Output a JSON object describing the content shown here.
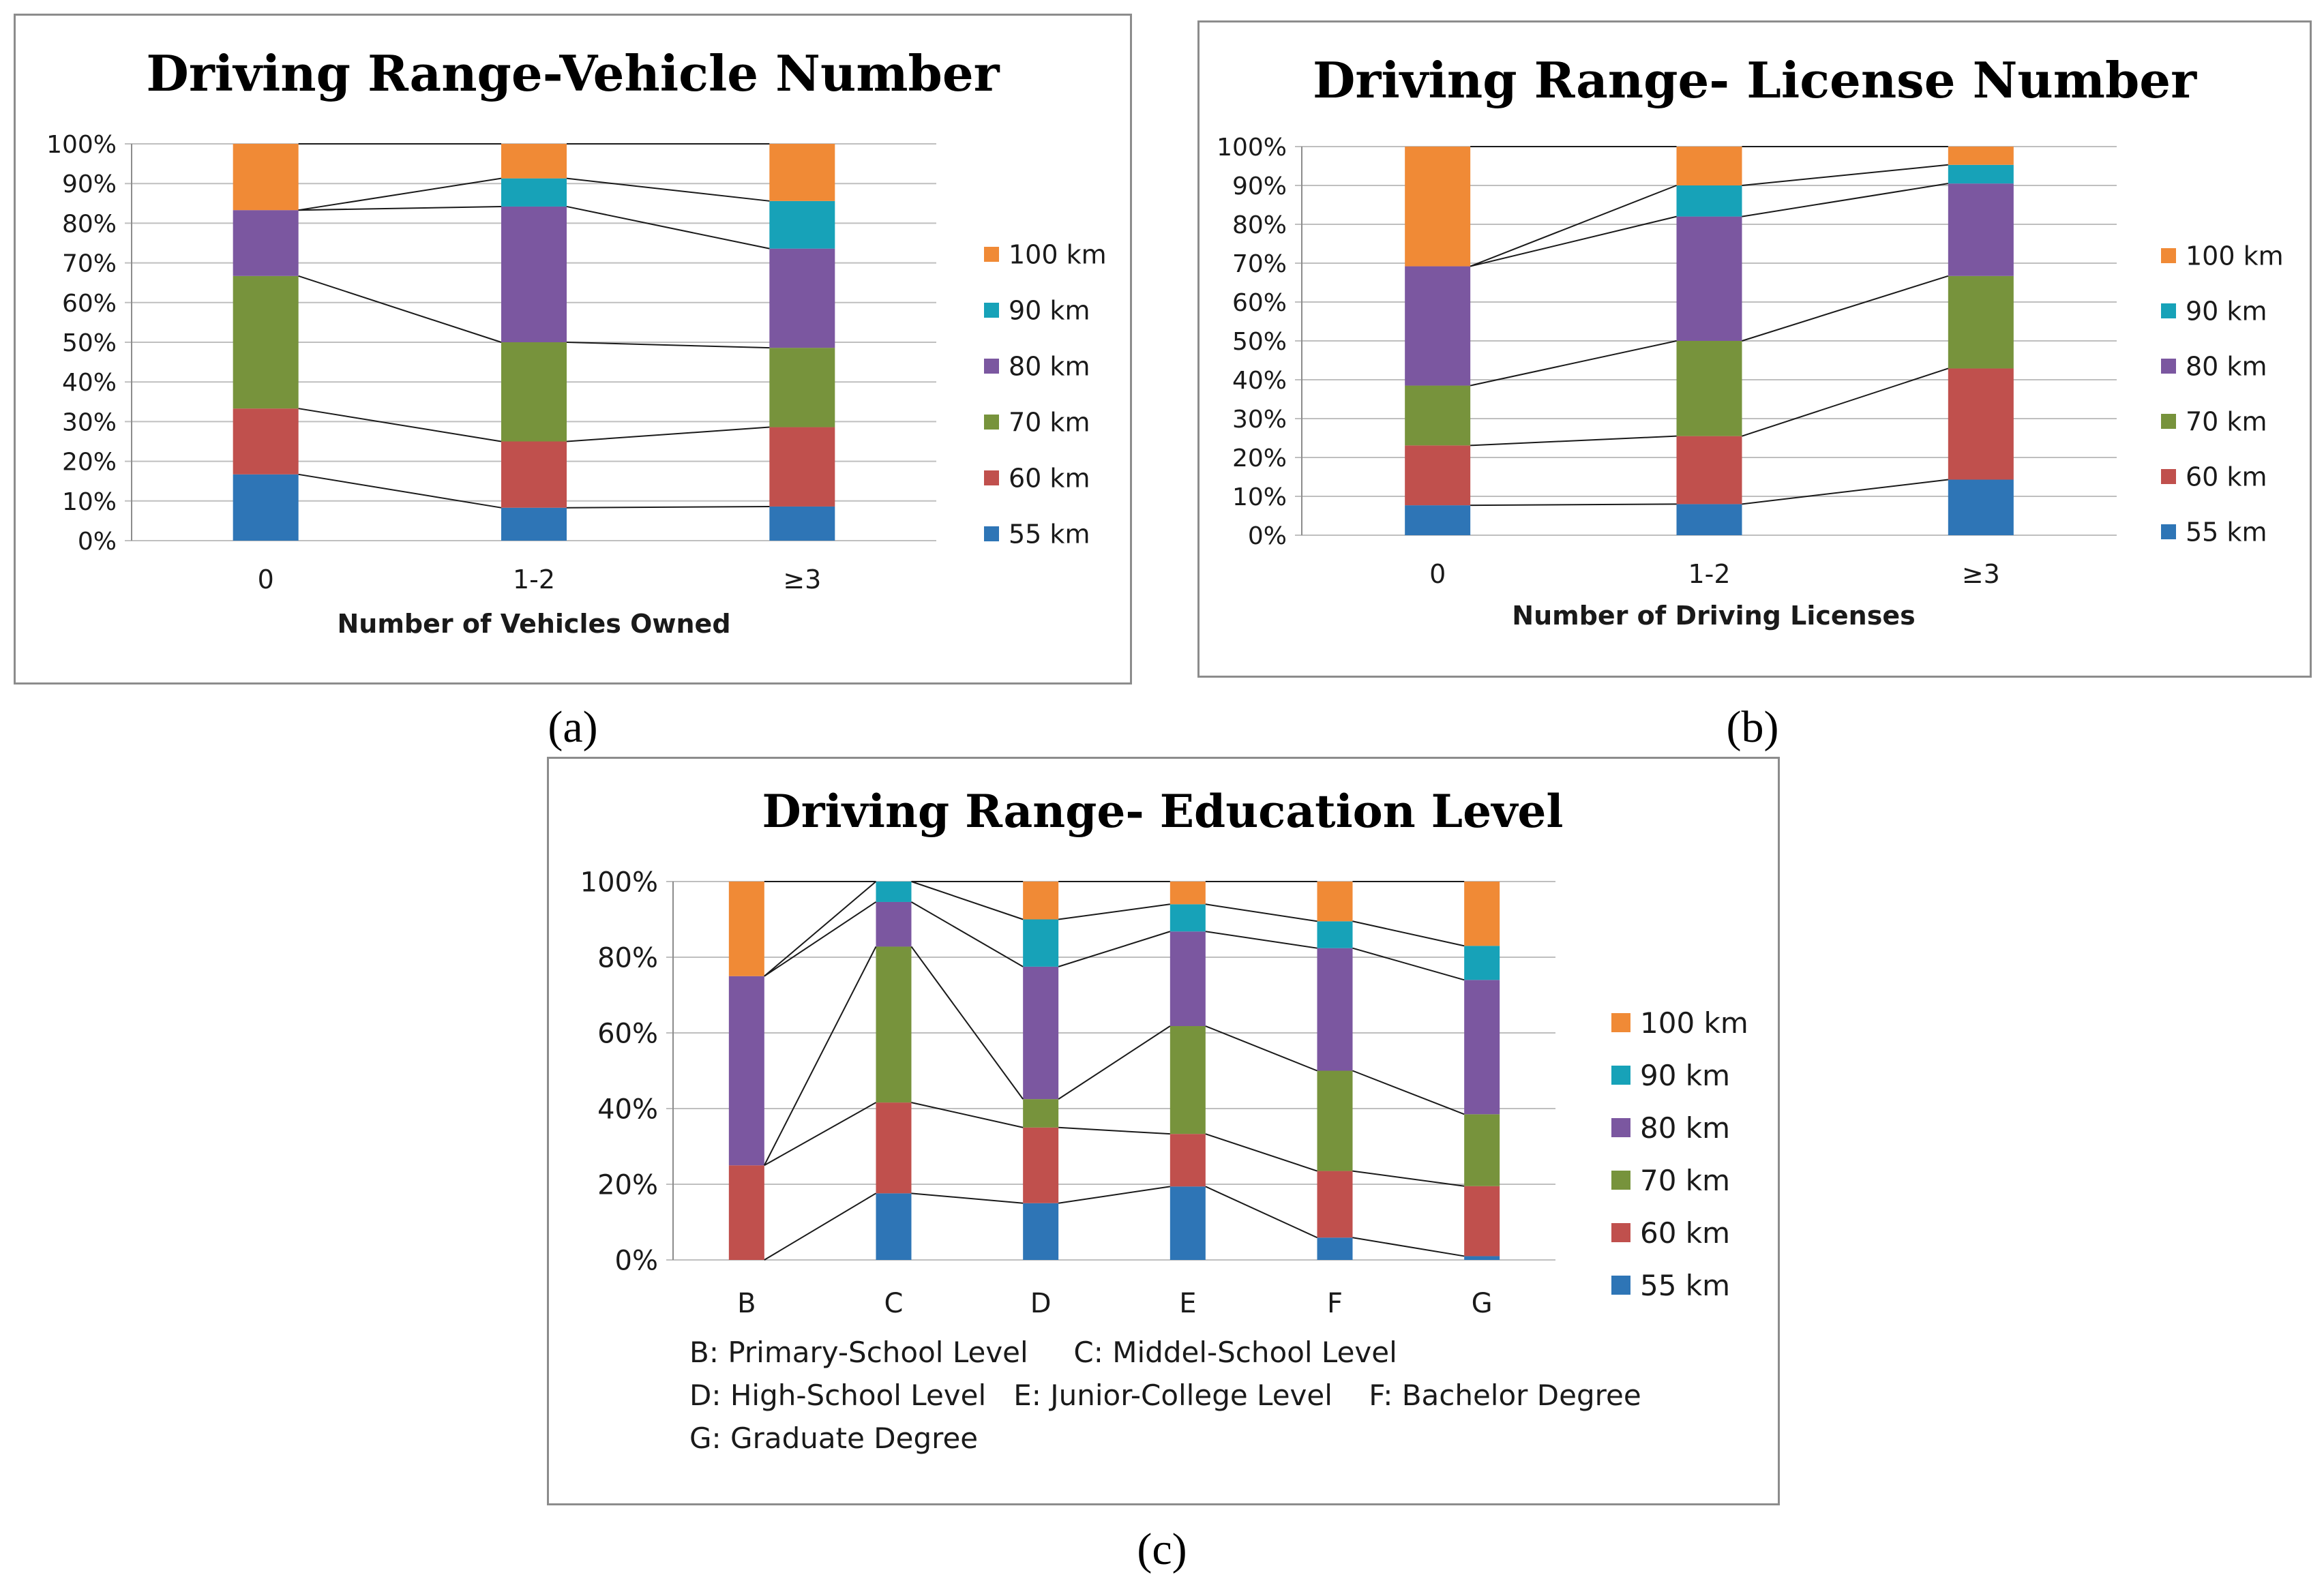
{
  "figure": {
    "captions": [
      "(a)",
      "(b)",
      "(c)"
    ]
  },
  "chart_data": [
    {
      "id": "a",
      "type": "bar",
      "stacked": true,
      "normalized": true,
      "title": "Driving Range-Vehicle Number",
      "xlabel": "Number of Vehicles Owned",
      "ylabel": "",
      "ylim": [
        0,
        100
      ],
      "y_ticks": [
        "0%",
        "10%",
        "20%",
        "30%",
        "40%",
        "50%",
        "60%",
        "70%",
        "80%",
        "90%",
        "100%"
      ],
      "categories": [
        "0",
        "1-2",
        "≥3"
      ],
      "legend_position": "right",
      "series": [
        {
          "name": "55 km",
          "color": "#2e75b6",
          "values": [
            16.7,
            8.3,
            8.6
          ]
        },
        {
          "name": "60 km",
          "color": "#c0504d",
          "values": [
            16.6,
            16.7,
            20.0
          ]
        },
        {
          "name": "70 km",
          "color": "#77933c",
          "values": [
            33.4,
            25.0,
            20.0
          ]
        },
        {
          "name": "80 km",
          "color": "#7b57a0",
          "values": [
            16.6,
            34.2,
            25.0
          ]
        },
        {
          "name": "90 km",
          "color": "#17a2b8",
          "values": [
            0.0,
            7.1,
            12.0
          ]
        },
        {
          "name": "100 km",
          "color": "#f08a36",
          "values": [
            16.7,
            8.7,
            14.4
          ]
        }
      ]
    },
    {
      "id": "b",
      "type": "bar",
      "stacked": true,
      "normalized": true,
      "title": "Driving Range- License Number",
      "xlabel": "Number of Driving Licenses",
      "ylabel": "",
      "ylim": [
        0,
        100
      ],
      "y_ticks": [
        "0%",
        "10%",
        "20%",
        "30%",
        "40%",
        "50%",
        "60%",
        "70%",
        "80%",
        "90%",
        "100%"
      ],
      "categories": [
        "0",
        "1-2",
        "≥3"
      ],
      "legend_position": "right",
      "series": [
        {
          "name": "55 km",
          "color": "#2e75b6",
          "values": [
            7.7,
            8.0,
            14.3
          ]
        },
        {
          "name": "60 km",
          "color": "#c0504d",
          "values": [
            15.4,
            17.5,
            28.6
          ]
        },
        {
          "name": "70 km",
          "color": "#77933c",
          "values": [
            15.4,
            24.5,
            23.8
          ]
        },
        {
          "name": "80 km",
          "color": "#7b57a0",
          "values": [
            30.7,
            32.0,
            23.8
          ]
        },
        {
          "name": "90 km",
          "color": "#17a2b8",
          "values": [
            0.0,
            8.0,
            4.8
          ]
        },
        {
          "name": "100 km",
          "color": "#f08a36",
          "values": [
            30.8,
            10.0,
            4.7
          ]
        }
      ]
    },
    {
      "id": "c",
      "type": "bar",
      "stacked": true,
      "normalized": true,
      "title": "Driving Range- Education Level",
      "xlabel": "",
      "ylabel": "",
      "ylim": [
        0,
        100
      ],
      "y_ticks": [
        "0%",
        "20%",
        "40%",
        "60%",
        "80%",
        "100%"
      ],
      "categories": [
        "B",
        "C",
        "D",
        "E",
        "F",
        "G"
      ],
      "legend_position": "right",
      "footnotes": [
        "B: Primary-School Level     C: Middel-School Level",
        "D: High-School Level   E: Junior-College Level    F: Bachelor Degree",
        "G: Graduate Degree"
      ],
      "series": [
        {
          "name": "55 km",
          "color": "#2e75b6",
          "values": [
            0.0,
            17.6,
            15.0,
            19.4,
            5.9,
            1.0
          ]
        },
        {
          "name": "60 km",
          "color": "#c0504d",
          "values": [
            25.0,
            24.0,
            20.0,
            13.9,
            17.6,
            18.5
          ]
        },
        {
          "name": "70 km",
          "color": "#77933c",
          "values": [
            0.0,
            41.2,
            7.5,
            28.5,
            26.5,
            19.0
          ]
        },
        {
          "name": "80 km",
          "color": "#7b57a0",
          "values": [
            50.0,
            11.8,
            35.0,
            25.0,
            32.4,
            35.5
          ]
        },
        {
          "name": "90 km",
          "color": "#17a2b8",
          "values": [
            0.0,
            5.4,
            12.5,
            7.2,
            7.1,
            9.0
          ]
        },
        {
          "name": "100 km",
          "color": "#f08a36",
          "values": [
            25.0,
            0.0,
            10.0,
            6.0,
            10.5,
            17.0
          ]
        }
      ]
    }
  ]
}
